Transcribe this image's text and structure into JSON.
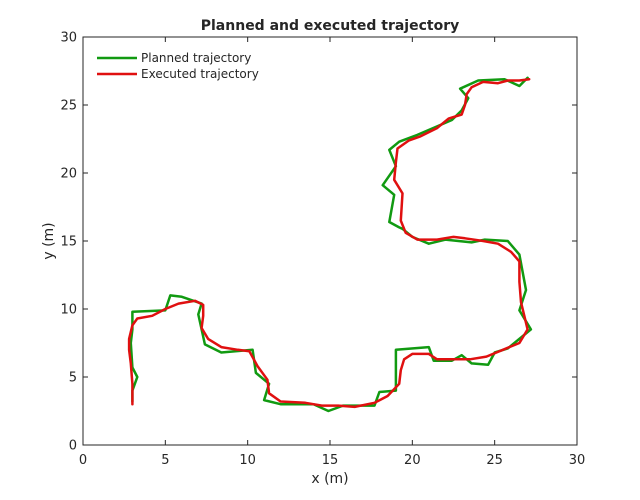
{
  "chart_data": {
    "type": "line",
    "title": "Planned and executed trajectory",
    "xlabel": "x (m)",
    "ylabel": "y (m)",
    "xlim": [
      0,
      30
    ],
    "ylim": [
      0,
      30
    ],
    "xticks": [
      "0",
      "5",
      "10",
      "15",
      "20",
      "25",
      "30"
    ],
    "yticks": [
      "0",
      "5",
      "10",
      "15",
      "20",
      "25",
      "30"
    ],
    "grid": false,
    "legend_position": "top-left",
    "series": [
      {
        "name": "Planned trajectory",
        "color": "#119a11",
        "points": [
          [
            3.0,
            3.2
          ],
          [
            3.0,
            4.0
          ],
          [
            3.3,
            5.0
          ],
          [
            3.0,
            5.7
          ],
          [
            2.9,
            7.5
          ],
          [
            3.0,
            8.5
          ],
          [
            3.0,
            9.8
          ],
          [
            5.0,
            9.9
          ],
          [
            5.3,
            11.0
          ],
          [
            6.0,
            10.9
          ],
          [
            7.2,
            10.4
          ],
          [
            7.0,
            9.6
          ],
          [
            7.4,
            7.4
          ],
          [
            8.4,
            6.8
          ],
          [
            10.3,
            7.0
          ],
          [
            10.5,
            5.3
          ],
          [
            11.3,
            4.5
          ],
          [
            11.0,
            3.3
          ],
          [
            12.0,
            3.0
          ],
          [
            14.0,
            3.0
          ],
          [
            14.9,
            2.5
          ],
          [
            15.8,
            2.9
          ],
          [
            17.7,
            2.9
          ],
          [
            18.0,
            3.9
          ],
          [
            19.0,
            4.0
          ],
          [
            19.0,
            7.0
          ],
          [
            21.0,
            7.2
          ],
          [
            21.3,
            6.2
          ],
          [
            22.4,
            6.2
          ],
          [
            23.0,
            6.6
          ],
          [
            23.6,
            6.0
          ],
          [
            24.6,
            5.9
          ],
          [
            25.0,
            6.8
          ],
          [
            25.8,
            7.1
          ],
          [
            27.2,
            8.5
          ],
          [
            26.5,
            9.9
          ],
          [
            26.9,
            11.4
          ],
          [
            26.5,
            14.0
          ],
          [
            25.8,
            15.0
          ],
          [
            24.4,
            15.1
          ],
          [
            23.6,
            14.9
          ],
          [
            22.0,
            15.1
          ],
          [
            21.0,
            14.8
          ],
          [
            20.0,
            15.3
          ],
          [
            19.4,
            15.9
          ],
          [
            19.2,
            16.0
          ],
          [
            18.6,
            16.4
          ],
          [
            18.9,
            18.4
          ],
          [
            18.2,
            19.1
          ],
          [
            19.0,
            20.5
          ],
          [
            18.6,
            21.7
          ],
          [
            19.2,
            22.3
          ],
          [
            20.3,
            22.8
          ],
          [
            22.4,
            23.9
          ],
          [
            23.0,
            24.6
          ],
          [
            23.4,
            25.5
          ],
          [
            22.9,
            26.2
          ],
          [
            24.0,
            26.8
          ],
          [
            25.6,
            26.9
          ],
          [
            26.5,
            26.4
          ],
          [
            27.0,
            27.0
          ]
        ]
      },
      {
        "name": "Executed trajectory",
        "color": "#e01010",
        "points": [
          [
            3.0,
            3.0
          ],
          [
            3.0,
            4.5
          ],
          [
            2.9,
            6.0
          ],
          [
            2.8,
            7.0
          ],
          [
            2.8,
            7.8
          ],
          [
            3.0,
            8.8
          ],
          [
            3.3,
            9.3
          ],
          [
            4.2,
            9.5
          ],
          [
            5.0,
            10.0
          ],
          [
            5.8,
            10.4
          ],
          [
            6.8,
            10.6
          ],
          [
            7.3,
            10.3
          ],
          [
            7.3,
            9.5
          ],
          [
            7.2,
            8.6
          ],
          [
            7.6,
            7.8
          ],
          [
            8.4,
            7.2
          ],
          [
            9.4,
            7.0
          ],
          [
            10.1,
            6.9
          ],
          [
            10.6,
            5.8
          ],
          [
            11.2,
            4.8
          ],
          [
            11.3,
            3.8
          ],
          [
            12.0,
            3.2
          ],
          [
            13.5,
            3.1
          ],
          [
            14.5,
            2.9
          ],
          [
            15.5,
            2.9
          ],
          [
            16.5,
            2.8
          ],
          [
            17.7,
            3.1
          ],
          [
            18.5,
            3.6
          ],
          [
            19.2,
            4.5
          ],
          [
            19.3,
            5.5
          ],
          [
            19.5,
            6.3
          ],
          [
            20.0,
            6.7
          ],
          [
            21.0,
            6.7
          ],
          [
            21.5,
            6.3
          ],
          [
            22.5,
            6.3
          ],
          [
            23.5,
            6.3
          ],
          [
            24.5,
            6.5
          ],
          [
            25.5,
            7.0
          ],
          [
            26.5,
            7.5
          ],
          [
            27.0,
            8.5
          ],
          [
            26.8,
            9.5
          ],
          [
            26.6,
            10.5
          ],
          [
            26.5,
            12.0
          ],
          [
            26.5,
            13.5
          ],
          [
            26.0,
            14.2
          ],
          [
            25.2,
            14.8
          ],
          [
            24.3,
            15.0
          ],
          [
            23.2,
            15.2
          ],
          [
            22.5,
            15.3
          ],
          [
            21.5,
            15.1
          ],
          [
            20.3,
            15.1
          ],
          [
            19.6,
            15.6
          ],
          [
            19.3,
            16.5
          ],
          [
            19.4,
            18.5
          ],
          [
            18.9,
            19.5
          ],
          [
            19.0,
            20.8
          ],
          [
            19.1,
            21.8
          ],
          [
            19.8,
            22.4
          ],
          [
            20.5,
            22.7
          ],
          [
            21.5,
            23.3
          ],
          [
            22.2,
            24.0
          ],
          [
            23.0,
            24.3
          ],
          [
            23.2,
            25.0
          ],
          [
            23.3,
            25.8
          ],
          [
            23.6,
            26.3
          ],
          [
            24.3,
            26.7
          ],
          [
            25.2,
            26.6
          ],
          [
            25.8,
            26.8
          ],
          [
            26.5,
            26.8
          ],
          [
            27.1,
            26.9
          ]
        ]
      }
    ]
  }
}
